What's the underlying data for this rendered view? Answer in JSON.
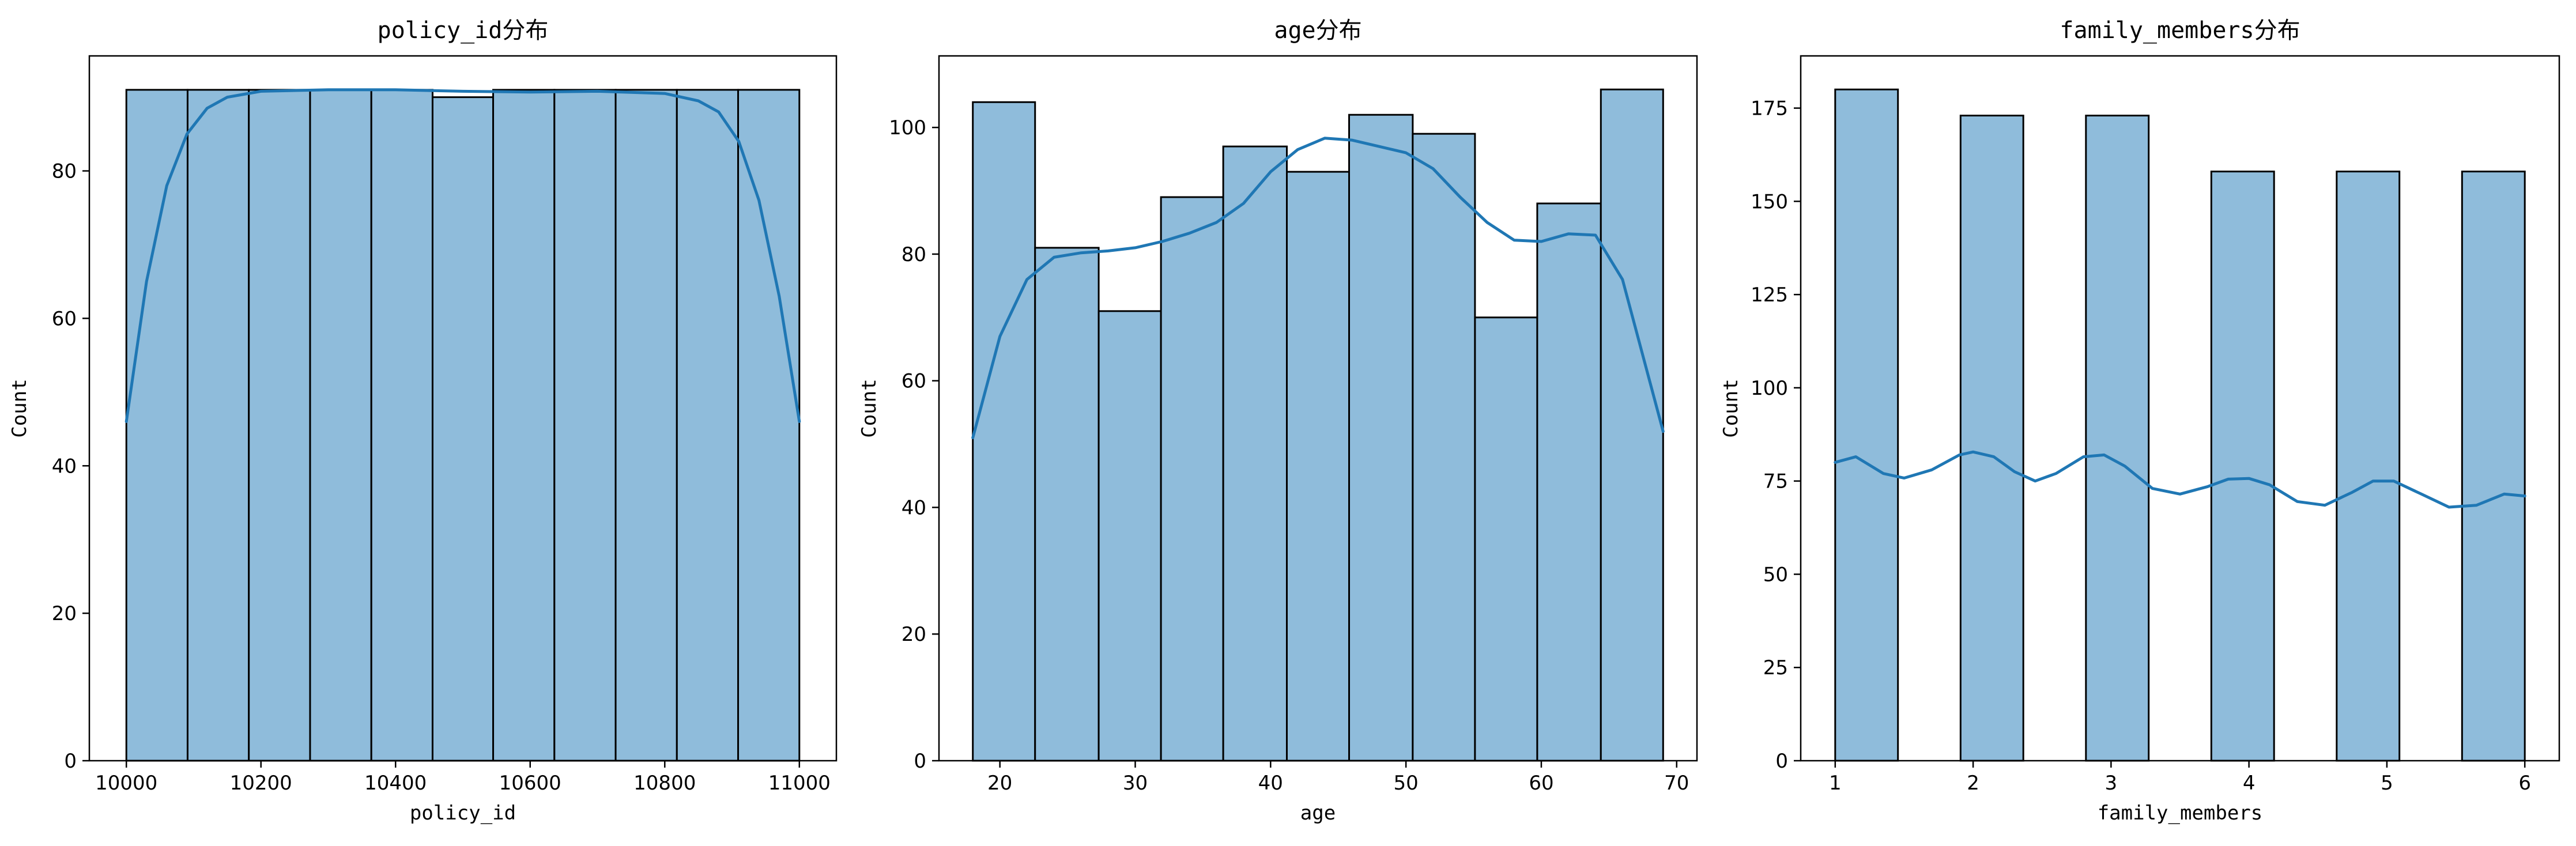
{
  "chart_data": [
    {
      "type": "bar",
      "title": "policy_id分布",
      "xlabel": "policy_id",
      "ylabel": "Count",
      "xlim": [
        9945,
        11055
      ],
      "ylim": [
        0,
        95.6
      ],
      "xticks": [
        10000,
        10200,
        10400,
        10600,
        10800,
        11000
      ],
      "yticks": [
        0,
        20,
        40,
        60,
        80
      ],
      "bins": [
        {
          "x0": 10000,
          "x1": 10091,
          "count": 91
        },
        {
          "x0": 10091,
          "x1": 10182,
          "count": 91
        },
        {
          "x0": 10182,
          "x1": 10273,
          "count": 91
        },
        {
          "x0": 10273,
          "x1": 10364,
          "count": 91
        },
        {
          "x0": 10364,
          "x1": 10455,
          "count": 91
        },
        {
          "x0": 10455,
          "x1": 10545,
          "count": 90
        },
        {
          "x0": 10545,
          "x1": 10636,
          "count": 91
        },
        {
          "x0": 10636,
          "x1": 10727,
          "count": 91
        },
        {
          "x0": 10727,
          "x1": 10818,
          "count": 91
        },
        {
          "x0": 10818,
          "x1": 10909,
          "count": 91
        },
        {
          "x0": 10909,
          "x1": 11000,
          "count": 91
        }
      ],
      "kde": {
        "x": [
          10000,
          10030,
          10060,
          10090,
          10120,
          10150,
          10200,
          10300,
          10400,
          10500,
          10600,
          10700,
          10800,
          10850,
          10880,
          10910,
          10940,
          10970,
          11000
        ],
        "y": [
          46,
          65,
          78,
          85,
          88.5,
          90,
          90.8,
          91,
          91,
          90.8,
          90.7,
          90.8,
          90.5,
          89.5,
          88,
          84,
          76,
          63,
          46
        ]
      }
    },
    {
      "type": "bar",
      "title": "age分布",
      "xlabel": "age",
      "ylabel": "Count",
      "xlim": [
        15.5,
        71.5
      ],
      "ylim": [
        0,
        111.3
      ],
      "xticks": [
        20,
        30,
        40,
        50,
        60,
        70
      ],
      "yticks": [
        0,
        20,
        40,
        60,
        80,
        100
      ],
      "bins": [
        {
          "x0": 18.0,
          "x1": 22.6,
          "count": 104
        },
        {
          "x0": 22.6,
          "x1": 27.3,
          "count": 81
        },
        {
          "x0": 27.3,
          "x1": 31.9,
          "count": 71
        },
        {
          "x0": 31.9,
          "x1": 36.5,
          "count": 89
        },
        {
          "x0": 36.5,
          "x1": 41.2,
          "count": 97
        },
        {
          "x0": 41.2,
          "x1": 45.8,
          "count": 93
        },
        {
          "x0": 45.8,
          "x1": 50.5,
          "count": 102
        },
        {
          "x0": 50.5,
          "x1": 55.1,
          "count": 99
        },
        {
          "x0": 55.1,
          "x1": 59.7,
          "count": 70
        },
        {
          "x0": 59.7,
          "x1": 64.4,
          "count": 88
        },
        {
          "x0": 64.4,
          "x1": 69.0,
          "count": 106
        }
      ],
      "kde": {
        "x": [
          18,
          20,
          22,
          24,
          26,
          28,
          30,
          32,
          34,
          36,
          38,
          40,
          42,
          44,
          46,
          48,
          50,
          52,
          54,
          56,
          58,
          60,
          62,
          64,
          66,
          68,
          69
        ],
        "y": [
          51,
          67,
          76,
          79.5,
          80.2,
          80.5,
          81,
          82,
          83.3,
          85,
          88,
          93,
          96.5,
          98.3,
          98,
          97,
          96,
          93.5,
          89,
          85,
          82.2,
          82,
          83.2,
          83,
          76,
          60,
          52
        ]
      }
    },
    {
      "type": "bar",
      "title": "family_members分布",
      "xlabel": "family_members",
      "ylabel": "Count",
      "xlim": [
        0.75,
        6.25
      ],
      "ylim": [
        0,
        189
      ],
      "xticks": [
        1,
        2,
        3,
        4,
        5,
        6
      ],
      "yticks": [
        0,
        25,
        50,
        75,
        100,
        125,
        150,
        175
      ],
      "bins": [
        {
          "x0": 1.0,
          "x1": 1.455,
          "count": 180
        },
        {
          "x0": 1.909,
          "x1": 2.364,
          "count": 173
        },
        {
          "x0": 2.818,
          "x1": 3.273,
          "count": 173
        },
        {
          "x0": 3.727,
          "x1": 4.182,
          "count": 158
        },
        {
          "x0": 4.636,
          "x1": 5.091,
          "count": 158
        },
        {
          "x0": 5.545,
          "x1": 6.0,
          "count": 158
        }
      ],
      "kde": {
        "x": [
          1.0,
          1.15,
          1.35,
          1.5,
          1.7,
          1.9,
          2.0,
          2.15,
          2.3,
          2.45,
          2.6,
          2.8,
          2.95,
          3.1,
          3.3,
          3.5,
          3.7,
          3.85,
          4.0,
          4.15,
          4.35,
          4.55,
          4.75,
          4.9,
          5.05,
          5.25,
          5.45,
          5.65,
          5.85,
          6.0
        ],
        "y": [
          80,
          81.5,
          77,
          75.8,
          78,
          82,
          82.8,
          81.5,
          77.5,
          75,
          77,
          81.5,
          82,
          79,
          73,
          71.5,
          73.5,
          75.5,
          75.7,
          74,
          69.5,
          68.5,
          72,
          75,
          75,
          71.5,
          68,
          68.5,
          71.5,
          71
        ]
      }
    }
  ]
}
